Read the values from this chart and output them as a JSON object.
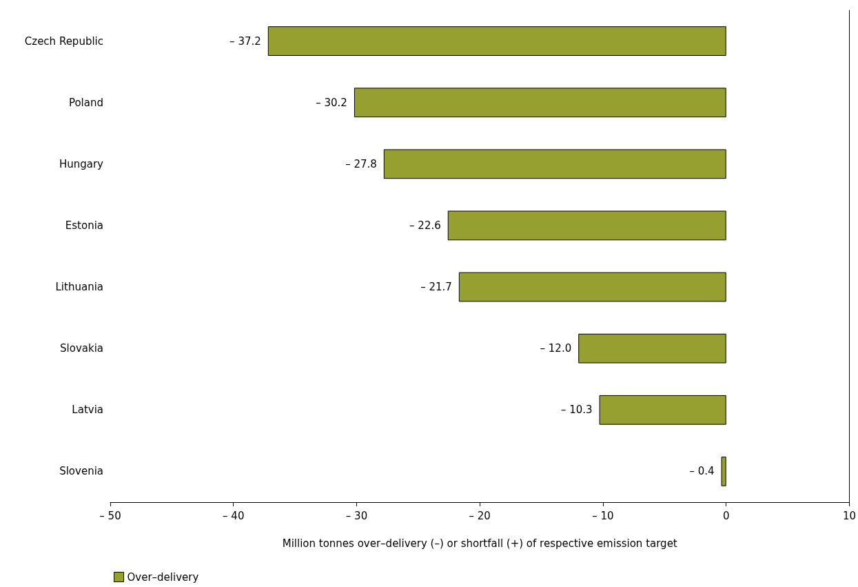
{
  "chart_data": {
    "type": "bar",
    "orientation": "horizontal",
    "xlabel": "Million tonnes over–delivery (–) or shortfall (+) of respective emission target",
    "categories": [
      "Czech Republic",
      "Poland",
      "Hungary",
      "Estonia",
      "Lithuania",
      "Slovakia",
      "Latvia",
      "Slovenia"
    ],
    "series": [
      {
        "name": "Over–delivery",
        "color": "#95a030",
        "values": [
          -37.2,
          -30.2,
          -27.8,
          -22.6,
          -21.7,
          -12.0,
          -10.3,
          -0.4
        ],
        "value_labels": [
          "– 37.2",
          "– 30.2",
          "– 27.8",
          "– 22.6",
          "– 21.7",
          "– 12.0",
          "– 10.3",
          "– 0.4"
        ]
      }
    ],
    "xlim": [
      -50,
      10
    ],
    "xticks": [
      {
        "value": -50,
        "label": "– 50"
      },
      {
        "value": -40,
        "label": "– 40"
      },
      {
        "value": -30,
        "label": "– 30"
      },
      {
        "value": -20,
        "label": "– 20"
      },
      {
        "value": -10,
        "label": "– 10"
      },
      0,
      10
    ],
    "legend": "bottom left",
    "grid": false
  }
}
